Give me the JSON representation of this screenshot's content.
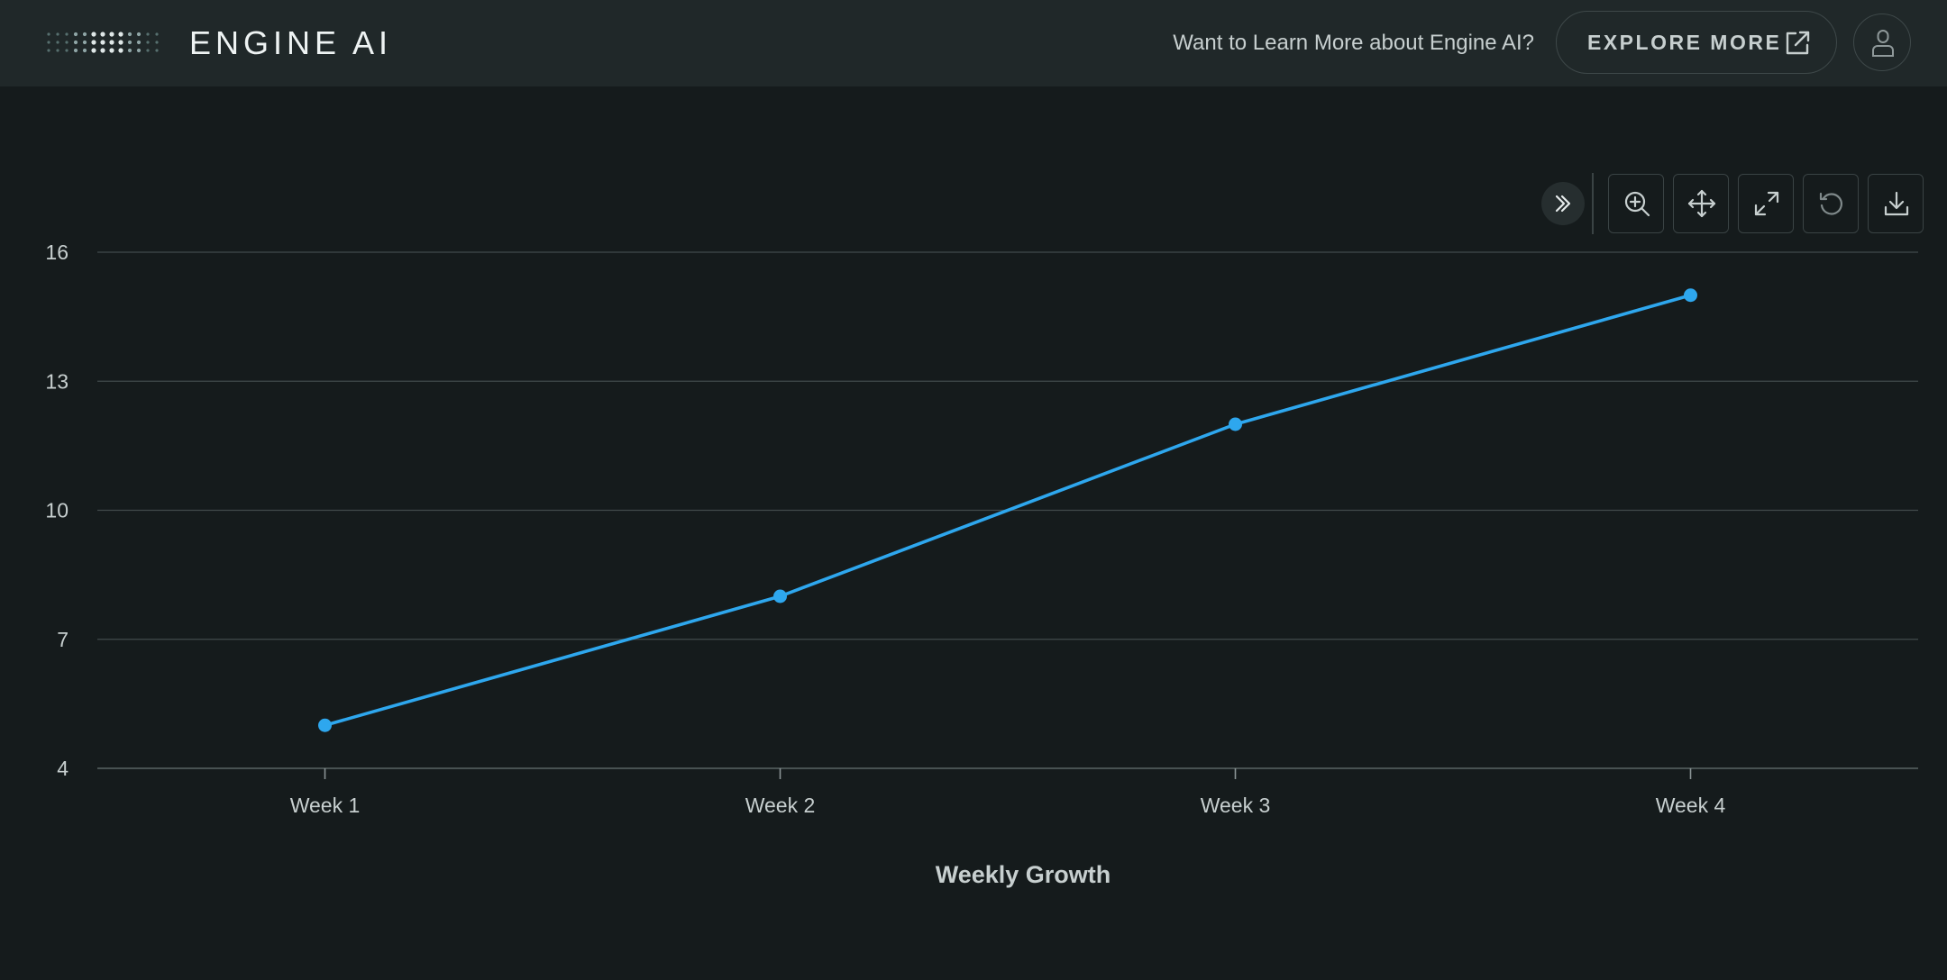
{
  "header": {
    "brand": "ENGINE AI",
    "promo_text": "Want to Learn More about Engine AI?",
    "explore_label": "EXPLORE MORE"
  },
  "toolbar": {
    "icons": [
      "chevrons-right-icon",
      "zoom-in-icon",
      "pan-icon",
      "expand-icon",
      "reset-icon",
      "download-icon"
    ]
  },
  "colors": {
    "background": "#151b1c",
    "header": "#202829",
    "series": "#2ea7ee",
    "grid": "#414a4b"
  },
  "chart_data": {
    "type": "line",
    "categories": [
      "Week 1",
      "Week 2",
      "Week 3",
      "Week 4"
    ],
    "series": [
      {
        "values": [
          5,
          8,
          12,
          15
        ]
      }
    ],
    "xlabel": "Weekly Growth",
    "ylabel": "",
    "ylim": [
      4,
      16
    ],
    "yticks": [
      4,
      7,
      10,
      13,
      16
    ],
    "grid": true,
    "legend": "none"
  }
}
